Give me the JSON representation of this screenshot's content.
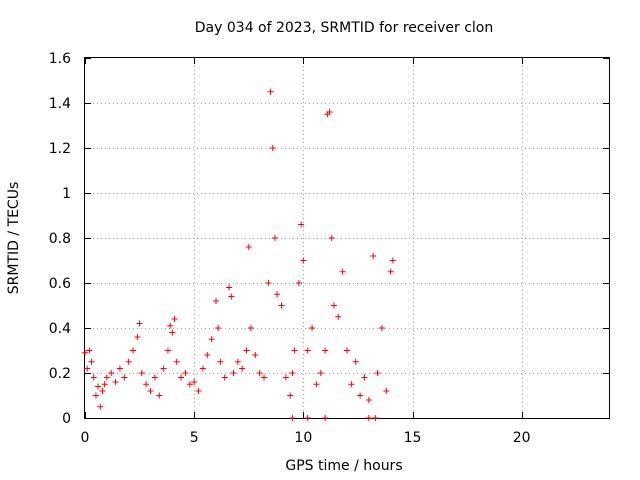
{
  "chart_data": {
    "type": "scatter",
    "title": "Day 034 of 2023, SRMTID for receiver clon",
    "xlabel": "GPS time / hours",
    "ylabel": "SRMTID / TECUs",
    "xlim": [
      0,
      24
    ],
    "ylim": [
      0,
      1.6
    ],
    "xticks": [
      0,
      5,
      10,
      15,
      20
    ],
    "xtick_labels": [
      "0",
      "5",
      "10",
      "15",
      "20"
    ],
    "yticks": [
      0,
      0.2,
      0.4,
      0.6,
      0.8,
      1,
      1.2,
      1.4,
      1.6
    ],
    "ytick_labels": [
      "0",
      "0.2",
      "0.4",
      "0.6",
      "0.8",
      "1",
      "1.2",
      "1.4",
      "1.6"
    ],
    "grid": true,
    "marker": "+",
    "color": "#ff0000",
    "series": [
      {
        "name": "SRMTID",
        "x": [
          0.0,
          0.1,
          0.2,
          0.3,
          0.4,
          0.5,
          0.6,
          0.7,
          0.8,
          0.9,
          1.0,
          1.2,
          1.4,
          1.6,
          1.8,
          2.0,
          2.2,
          2.4,
          2.5,
          2.6,
          2.8,
          3.0,
          3.2,
          3.4,
          3.6,
          3.8,
          3.9,
          4.0,
          4.1,
          4.2,
          4.4,
          4.6,
          4.8,
          5.0,
          5.2,
          5.4,
          5.6,
          5.8,
          6.0,
          6.1,
          6.2,
          6.4,
          6.6,
          6.7,
          6.8,
          7.0,
          7.2,
          7.4,
          7.5,
          7.6,
          7.8,
          8.0,
          8.2,
          8.4,
          8.5,
          8.6,
          8.7,
          8.8,
          9.0,
          9.2,
          9.4,
          9.5,
          9.6,
          9.8,
          9.9,
          10.0,
          10.2,
          10.4,
          10.6,
          10.8,
          11.0,
          11.1,
          11.2,
          11.3,
          11.4,
          11.6,
          11.8,
          12.0,
          12.2,
          12.4,
          12.6,
          12.8,
          13.0,
          13.2,
          13.4,
          13.6,
          13.8,
          14.0,
          14.1
        ],
        "y": [
          0.29,
          0.22,
          0.3,
          0.25,
          0.18,
          0.1,
          0.14,
          0.05,
          0.12,
          0.15,
          0.18,
          0.2,
          0.16,
          0.22,
          0.18,
          0.25,
          0.3,
          0.36,
          0.42,
          0.2,
          0.15,
          0.12,
          0.18,
          0.1,
          0.22,
          0.3,
          0.41,
          0.38,
          0.44,
          0.25,
          0.18,
          0.2,
          0.15,
          0.16,
          0.12,
          0.22,
          0.28,
          0.35,
          0.52,
          0.4,
          0.25,
          0.18,
          0.58,
          0.54,
          0.2,
          0.25,
          0.22,
          0.3,
          0.76,
          0.4,
          0.28,
          0.2,
          0.18,
          0.6,
          1.45,
          1.2,
          0.8,
          0.55,
          0.5,
          0.18,
          0.1,
          0.2,
          0.3,
          0.6,
          0.86,
          0.7,
          0.3,
          0.4,
          0.15,
          0.2,
          0.3,
          1.35,
          1.36,
          0.8,
          0.5,
          0.45,
          0.65,
          0.3,
          0.15,
          0.25,
          0.1,
          0.18,
          0.08,
          0.72,
          0.2,
          0.4,
          0.12,
          0.65,
          0.7
        ]
      }
    ],
    "bottom_markers": {
      "x": [
        9.5,
        10.2,
        11.0,
        13.0,
        13.3
      ],
      "y": [
        0,
        0,
        0,
        0,
        0
      ]
    }
  }
}
